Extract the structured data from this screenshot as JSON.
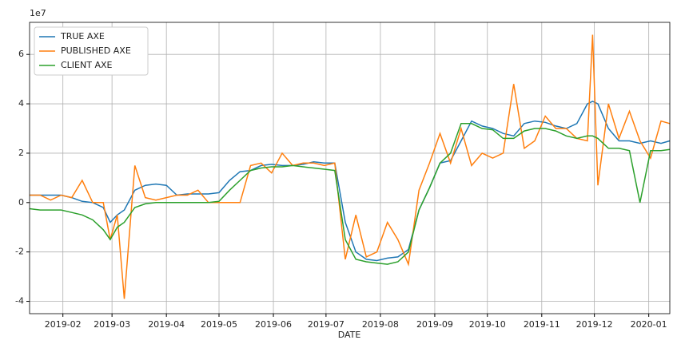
{
  "chart_data": {
    "type": "line",
    "xlabel": "DATE",
    "y_offset_label": "1e7",
    "x": [
      12,
      18,
      24,
      30,
      36,
      42,
      48,
      54,
      58,
      62,
      66,
      72,
      78,
      84,
      90,
      96,
      102,
      108,
      114,
      120,
      126,
      132,
      138,
      144,
      150,
      156,
      162,
      168,
      174,
      180,
      186,
      192,
      198,
      204,
      210,
      216,
      222,
      228,
      234,
      240,
      246,
      252,
      258,
      264,
      270,
      276,
      282,
      288,
      294,
      300,
      306,
      312,
      318,
      324,
      330,
      333,
      336,
      342,
      348,
      354,
      360,
      366,
      372,
      377
    ],
    "series": [
      {
        "name": "TRUE AXE",
        "color": "#1f77b4",
        "values": [
          0.3,
          0.3,
          0.3,
          0.3,
          0.2,
          0.05,
          0,
          -0.2,
          -0.8,
          -0.5,
          -0.3,
          0.5,
          0.7,
          0.75,
          0.7,
          0.3,
          0.35,
          0.35,
          0.35,
          0.4,
          0.9,
          1.25,
          1.3,
          1.5,
          1.55,
          1.5,
          1.5,
          1.55,
          1.65,
          1.6,
          1.6,
          -0.8,
          -2.0,
          -2.3,
          -2.35,
          -2.25,
          -2.2,
          -1.9,
          -0.3,
          0.6,
          1.6,
          1.7,
          2.5,
          3.3,
          3.1,
          3.0,
          2.8,
          2.7,
          3.2,
          3.3,
          3.25,
          3.1,
          3.0,
          3.2,
          4.0,
          4.1,
          4.0,
          3.0,
          2.5,
          2.5,
          2.4,
          2.5,
          2.4,
          2.5
        ]
      },
      {
        "name": "PUBLISHED AXE",
        "color": "#ff7f0e",
        "values": [
          0.3,
          0.3,
          0.1,
          0.3,
          0.2,
          0.9,
          0,
          0,
          -1.5,
          -0.5,
          -3.9,
          1.5,
          0.2,
          0.1,
          0.2,
          0.3,
          0.3,
          0.5,
          0,
          0,
          0,
          0,
          1.5,
          1.6,
          1.2,
          2.0,
          1.5,
          1.6,
          1.6,
          1.5,
          1.6,
          -2.3,
          -0.5,
          -2.2,
          -2.0,
          -0.8,
          -1.5,
          -2.5,
          0.5,
          1.6,
          2.8,
          1.6,
          3.0,
          1.5,
          2.0,
          1.8,
          2.0,
          4.8,
          2.2,
          2.5,
          3.5,
          3.0,
          3.0,
          2.6,
          2.5,
          6.8,
          0.7,
          4.0,
          2.6,
          3.7,
          2.5,
          1.8,
          3.3,
          3.2
        ]
      },
      {
        "name": "CLIENT AXE",
        "color": "#2ca02c",
        "values": [
          -0.25,
          -0.3,
          -0.3,
          -0.3,
          -0.4,
          -0.5,
          -0.7,
          -1.1,
          -1.5,
          -1.0,
          -0.8,
          -0.2,
          -0.05,
          0,
          0,
          0,
          0,
          0,
          0,
          0.05,
          0.5,
          0.9,
          1.3,
          1.4,
          1.45,
          1.45,
          1.5,
          1.45,
          1.4,
          1.35,
          1.3,
          -1.5,
          -2.3,
          -2.4,
          -2.45,
          -2.5,
          -2.4,
          -2.0,
          -0.3,
          0.6,
          1.6,
          2.0,
          3.2,
          3.2,
          3.0,
          2.95,
          2.6,
          2.6,
          2.9,
          3.0,
          3.0,
          2.9,
          2.7,
          2.6,
          2.7,
          2.7,
          2.6,
          2.2,
          2.2,
          2.1,
          0,
          2.1,
          2.1,
          2.15
        ]
      }
    ],
    "xlim": [
      12,
      377
    ],
    "xticks": [
      {
        "value": 31,
        "label": "2019-02"
      },
      {
        "value": 59,
        "label": "2019-03"
      },
      {
        "value": 90,
        "label": "2019-04"
      },
      {
        "value": 120,
        "label": "2019-05"
      },
      {
        "value": 151,
        "label": "2019-06"
      },
      {
        "value": 181,
        "label": "2019-07"
      },
      {
        "value": 212,
        "label": "2019-08"
      },
      {
        "value": 243,
        "label": "2019-09"
      },
      {
        "value": 273,
        "label": "2019-10"
      },
      {
        "value": 304,
        "label": "2019-11"
      },
      {
        "value": 334,
        "label": "2019-12"
      },
      {
        "value": 365,
        "label": "2020-01"
      }
    ],
    "ylim": [
      -4.5,
      7.3
    ],
    "yticks": [
      -4,
      -2,
      0,
      2,
      4,
      6
    ],
    "grid": true,
    "legend": "upper-left"
  }
}
